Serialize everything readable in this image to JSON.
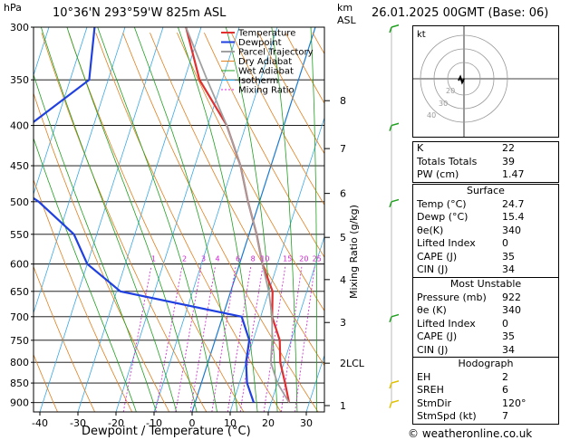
{
  "header": {
    "unit_top": "hPa",
    "location": "10°36'N  293°59'W  825m  ASL",
    "km": "km",
    "asl": "ASL",
    "datetime": "26.01.2025  00GMT  (Base: 06)"
  },
  "chart_data": {
    "type": "line",
    "title": "10°36'N  293°59'W  825m  ASL",
    "xlabel": "Dewpoint / Temperature (°C)",
    "ylabel_right": "Mixing Ratio (g/kg)",
    "x_ticks": [
      -40,
      -30,
      -20,
      -10,
      0,
      10,
      20,
      30
    ],
    "pressure_levels": [
      300,
      350,
      400,
      450,
      500,
      550,
      600,
      650,
      700,
      750,
      800,
      850,
      900
    ],
    "km_ticks": [
      {
        "km": "1",
        "p": 908
      },
      {
        "km": "2LCL",
        "p": 802
      },
      {
        "km": "3",
        "p": 712
      },
      {
        "km": "4",
        "p": 628
      },
      {
        "km": "5",
        "p": 555
      },
      {
        "km": "6",
        "p": 488
      },
      {
        "km": "7",
        "p": 428
      },
      {
        "km": "8",
        "p": 372
      }
    ],
    "mixing_ratio_labels": [
      "1",
      "2",
      "3",
      "4",
      "6",
      "8",
      "10",
      "15",
      "20",
      "25"
    ],
    "legend": [
      "Temperature",
      "Dewpoint",
      "Parcel Trajectory",
      "Dry Adiabat",
      "Wet Adiabat",
      "Isotherm",
      "Mixing Ratio"
    ],
    "legend_colors": [
      "#e03030",
      "#2040e0",
      "#a0a0a0",
      "#e08020",
      "#20a020",
      "#20a0e0",
      "#e020e0"
    ],
    "series": [
      {
        "name": "Temperature",
        "color": "#e03030",
        "points": [
          [
            300,
            -34
          ],
          [
            350,
            -26
          ],
          [
            400,
            -15
          ],
          [
            450,
            -8
          ],
          [
            500,
            -3
          ],
          [
            550,
            2
          ],
          [
            600,
            6
          ],
          [
            650,
            11
          ],
          [
            700,
            13
          ],
          [
            750,
            17
          ],
          [
            800,
            19
          ],
          [
            850,
            22
          ],
          [
            900,
            24.7
          ]
        ]
      },
      {
        "name": "Dewpoint",
        "color": "#2040e0",
        "points": [
          [
            300,
            -58
          ],
          [
            350,
            -55
          ],
          [
            400,
            -67
          ],
          [
            450,
            -75
          ],
          [
            500,
            -58
          ],
          [
            550,
            -46
          ],
          [
            600,
            -40
          ],
          [
            650,
            -29
          ],
          [
            700,
            5
          ],
          [
            750,
            9
          ],
          [
            800,
            10
          ],
          [
            850,
            12
          ],
          [
            900,
            15.4
          ]
        ]
      },
      {
        "name": "Parcel Trajectory",
        "color": "#a0a0a0",
        "points": [
          [
            300,
            -34
          ],
          [
            350,
            -24
          ],
          [
            400,
            -15
          ],
          [
            450,
            -8
          ],
          [
            500,
            -3
          ],
          [
            550,
            2
          ],
          [
            600,
            6
          ],
          [
            650,
            10
          ],
          [
            700,
            13
          ],
          [
            750,
            15
          ],
          [
            800,
            16.5
          ],
          [
            850,
            20
          ],
          [
            900,
            24.7
          ]
        ]
      }
    ]
  },
  "hodograph": {
    "label": "kt",
    "rings": [
      "20",
      "30",
      "40"
    ]
  },
  "indices": [
    {
      "label": "K",
      "value": "22"
    },
    {
      "label": "Totals Totals",
      "value": "39"
    },
    {
      "label": "PW (cm)",
      "value": "1.47"
    }
  ],
  "surface": {
    "title": "Surface",
    "rows": [
      {
        "label": "Temp (°C)",
        "value": "24.7"
      },
      {
        "label": "Dewp (°C)",
        "value": "15.4"
      },
      {
        "label": "θe(K)",
        "value": "340"
      },
      {
        "label": "Lifted Index",
        "value": "0"
      },
      {
        "label": "CAPE (J)",
        "value": "35"
      },
      {
        "label": "CIN (J)",
        "value": "34"
      }
    ]
  },
  "most_unstable": {
    "title": "Most Unstable",
    "rows": [
      {
        "label": "Pressure (mb)",
        "value": "922"
      },
      {
        "label": "θe (K)",
        "value": "340"
      },
      {
        "label": "Lifted Index",
        "value": "0"
      },
      {
        "label": "CAPE (J)",
        "value": "35"
      },
      {
        "label": "CIN (J)",
        "value": "34"
      }
    ]
  },
  "hodograph_table": {
    "title": "Hodograph",
    "rows": [
      {
        "label": "EH",
        "value": "2"
      },
      {
        "label": "SREH",
        "value": "6"
      },
      {
        "label": "StmDir",
        "value": "120°"
      },
      {
        "label": "StmSpd (kt)",
        "value": "7"
      }
    ]
  },
  "footer": {
    "copyright": "© weatheronline.co.uk"
  }
}
